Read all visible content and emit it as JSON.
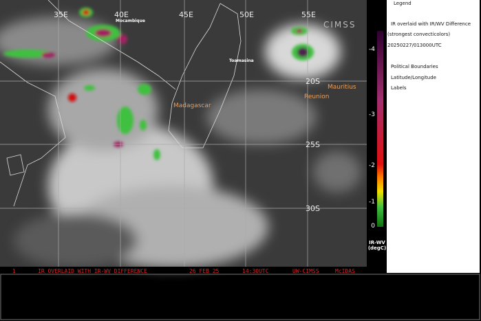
{
  "map": {
    "longitude_labels": [
      "35E",
      "40E",
      "45E",
      "50E",
      "55E"
    ],
    "latitude_labels": [
      "20S",
      "25S",
      "30S"
    ],
    "places": [
      "Mocambique",
      "Toamasina",
      "Madagascar",
      "Reunion",
      "Mauritius"
    ],
    "watermark": "CIMSS"
  },
  "legend": {
    "title": "Legend",
    "items": [
      "IR overlaid with IR/WV Difference",
      "(strongest convecticolors)",
      "20250227/013000UTC",
      "Political Boundaries",
      "Latitude/Longitude",
      "Labels"
    ],
    "colorbar": {
      "ticks": [
        "-4",
        "-3",
        "-2",
        "-1",
        "0"
      ],
      "title": "IR-WV",
      "unit": "(degC)"
    }
  },
  "banner": {
    "frame": "1",
    "product": "IR OVERLAID WITH IR-WV DIFFERENCE",
    "date": "26 FEB 25",
    "time": "14:30UTC",
    "source": "UW-CIMSS",
    "software": "McIDAS"
  }
}
